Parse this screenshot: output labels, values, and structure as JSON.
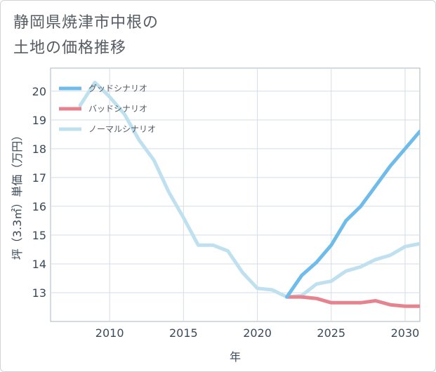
{
  "title_line1": "静岡県焼津市中根の",
  "title_line2": "土地の価格推移",
  "chart_data": {
    "type": "line",
    "title": "静岡県焼津市中根の土地の価格推移",
    "xlabel": "年",
    "ylabel": "坪（3.3㎡）単価（万円）",
    "xlim": [
      2006,
      2031
    ],
    "ylim": [
      12,
      20.8
    ],
    "x_ticks": [
      2010,
      2015,
      2020,
      2025,
      2030
    ],
    "y_ticks": [
      13,
      14,
      15,
      16,
      17,
      18,
      19,
      20
    ],
    "legend": [
      "グッドシナリオ",
      "バッドシナリオ",
      "ノーマルシナリオ"
    ],
    "legend_position": "top-left",
    "series": [
      {
        "name": "ノーマルシナリオ",
        "color": "#bfe0ef",
        "x": [
          2008,
          2009,
          2010,
          2011,
          2012,
          2013,
          2014,
          2015,
          2016,
          2017,
          2018,
          2019,
          2020,
          2021,
          2022,
          2023,
          2024,
          2025,
          2026,
          2027,
          2028,
          2029,
          2030,
          2031
        ],
        "y": [
          19.5,
          20.3,
          19.8,
          19.2,
          18.3,
          17.6,
          16.5,
          15.6,
          14.65,
          14.65,
          14.45,
          13.7,
          13.15,
          13.1,
          12.85,
          12.9,
          13.3,
          13.4,
          13.75,
          13.9,
          14.15,
          14.3,
          14.6,
          14.7
        ]
      },
      {
        "name": "バッドシナリオ",
        "color": "#e5848e",
        "x": [
          2022,
          2023,
          2024,
          2025,
          2026,
          2027,
          2028,
          2029,
          2030,
          2031
        ],
        "y": [
          12.85,
          12.85,
          12.8,
          12.65,
          12.65,
          12.65,
          12.72,
          12.58,
          12.53,
          12.53
        ]
      },
      {
        "name": "グッドシナリオ",
        "color": "#6fbcea",
        "x": [
          2022,
          2023,
          2024,
          2025,
          2026,
          2027,
          2028,
          2029,
          2030,
          2031
        ],
        "y": [
          12.85,
          13.6,
          14.05,
          14.65,
          15.5,
          16.0,
          16.7,
          17.4,
          18.0,
          18.6
        ]
      }
    ]
  }
}
